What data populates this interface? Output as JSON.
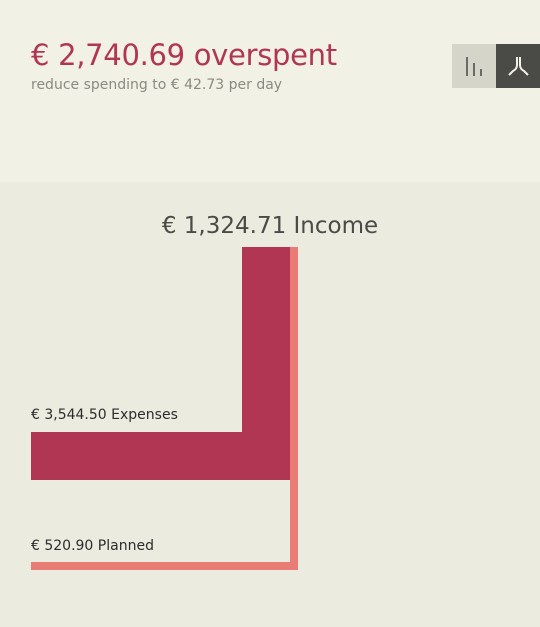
{
  "summary": {
    "headline": "€ 2,740.69 overspent",
    "subline": "reduce spending to € 42.73 per day"
  },
  "view_toggle": {
    "options": [
      "bar-chart-view",
      "flow-view"
    ],
    "selected": "flow-view"
  },
  "flow": {
    "income_label": "€ 1,324.71 Income",
    "expenses_label": "€ 3,544.50 Expenses",
    "planned_label": "€ 520.90 Planned"
  },
  "colors": {
    "overspent": "#b03654",
    "expenses": "#b03654",
    "planned": "#e97d76",
    "header_bg": "#f2f1e6",
    "main_bg": "#ecebe0"
  }
}
